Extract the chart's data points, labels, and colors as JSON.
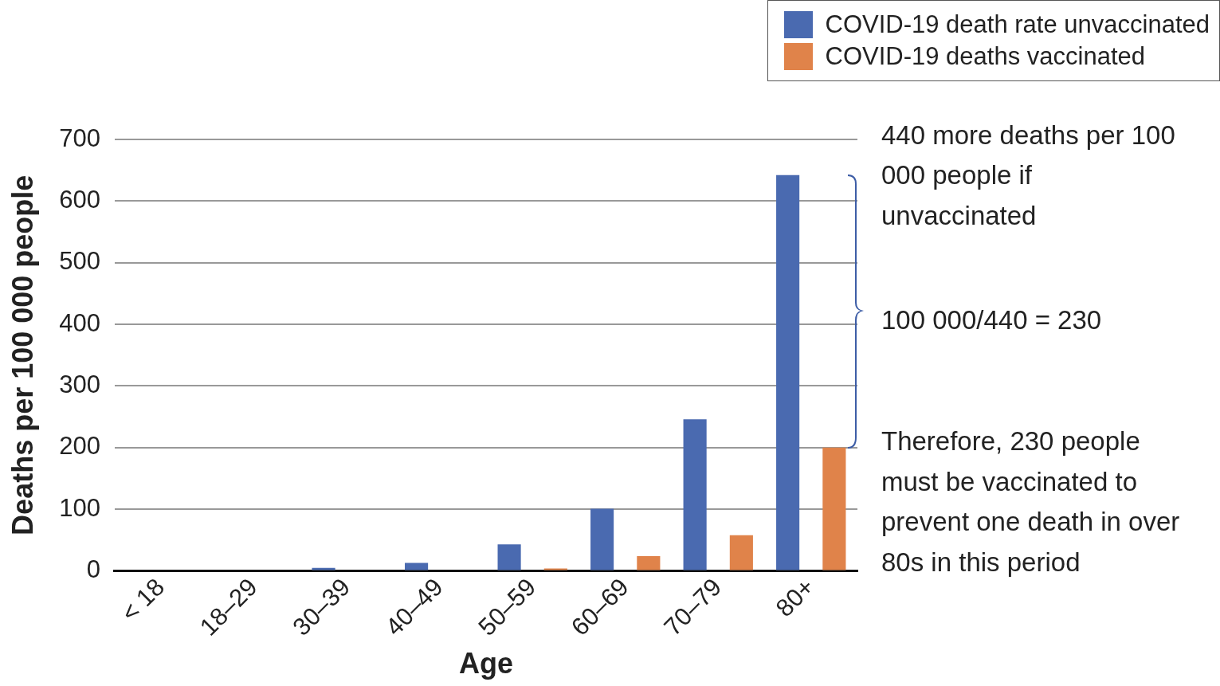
{
  "chart_data": {
    "type": "bar",
    "xlabel": "Age",
    "ylabel": "Deaths per 100 000 people",
    "categories": [
      "< 18",
      "18–29",
      "30–39",
      "40–49",
      "50–59",
      "60–69",
      "70–79",
      "80+"
    ],
    "series": [
      {
        "name": "COVID-19 death rate unvaccinated",
        "color": "#4a6ab0",
        "values": [
          0,
          0,
          5,
          13,
          43,
          101,
          246,
          642
        ]
      },
      {
        "name": "COVID-19 deaths vaccinated",
        "color": "#e0834a",
        "values": [
          0,
          0,
          0,
          0,
          4,
          24,
          58,
          200
        ]
      }
    ],
    "ylim": [
      0,
      700
    ],
    "yticks": [
      0,
      100,
      200,
      300,
      400,
      500,
      600,
      700
    ],
    "grid": "y",
    "legend": "top right",
    "annotations": [
      "440 more deaths per 100 000 people if unvaccinated",
      "100 000/440 = 230",
      "Therefore, 230 people must be vaccinated to prevent one death in over 80s in this period"
    ]
  }
}
